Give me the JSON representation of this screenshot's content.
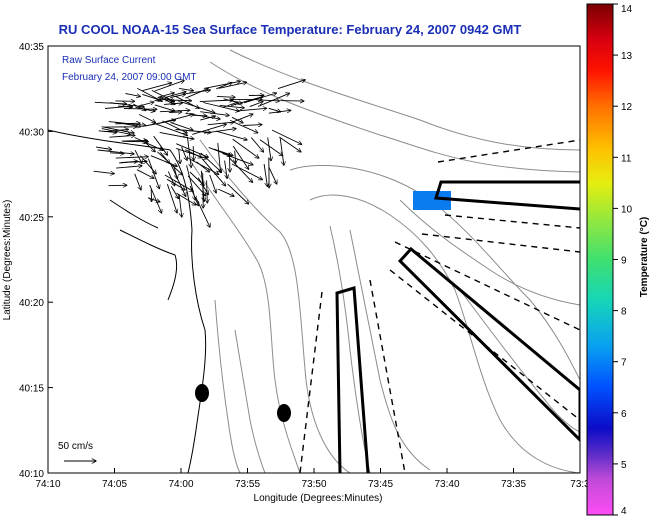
{
  "title": "RU COOL  NOAA-15  Sea Surface Temperature:  February 24, 2007 0942 GMT",
  "annotation": {
    "line1": "Raw Surface Current",
    "line2": "February 24, 2007 09:00 GMT",
    "color": "#1a2fb5"
  },
  "axes": {
    "xlabel": "Longitude (Degrees:Minutes)",
    "ylabel": "Latitude (Degrees:Minutes)",
    "xticks": [
      "74:10",
      "74:05",
      "74:00",
      "73:55",
      "73:50",
      "73:45",
      "73:40",
      "73:35",
      "73:3"
    ],
    "yticks": [
      "40:35",
      "40:30",
      "40:25",
      "40:20",
      "40:15",
      "40:10"
    ]
  },
  "scale_label": "50 cm/s",
  "colorbar": {
    "label": "Temperature (°C)",
    "ticks": [
      "14",
      "13",
      "12",
      "11",
      "10",
      "9",
      "8",
      "7",
      "6",
      "5",
      "4"
    ]
  },
  "sst_patch_color": "#0a7cf0"
}
